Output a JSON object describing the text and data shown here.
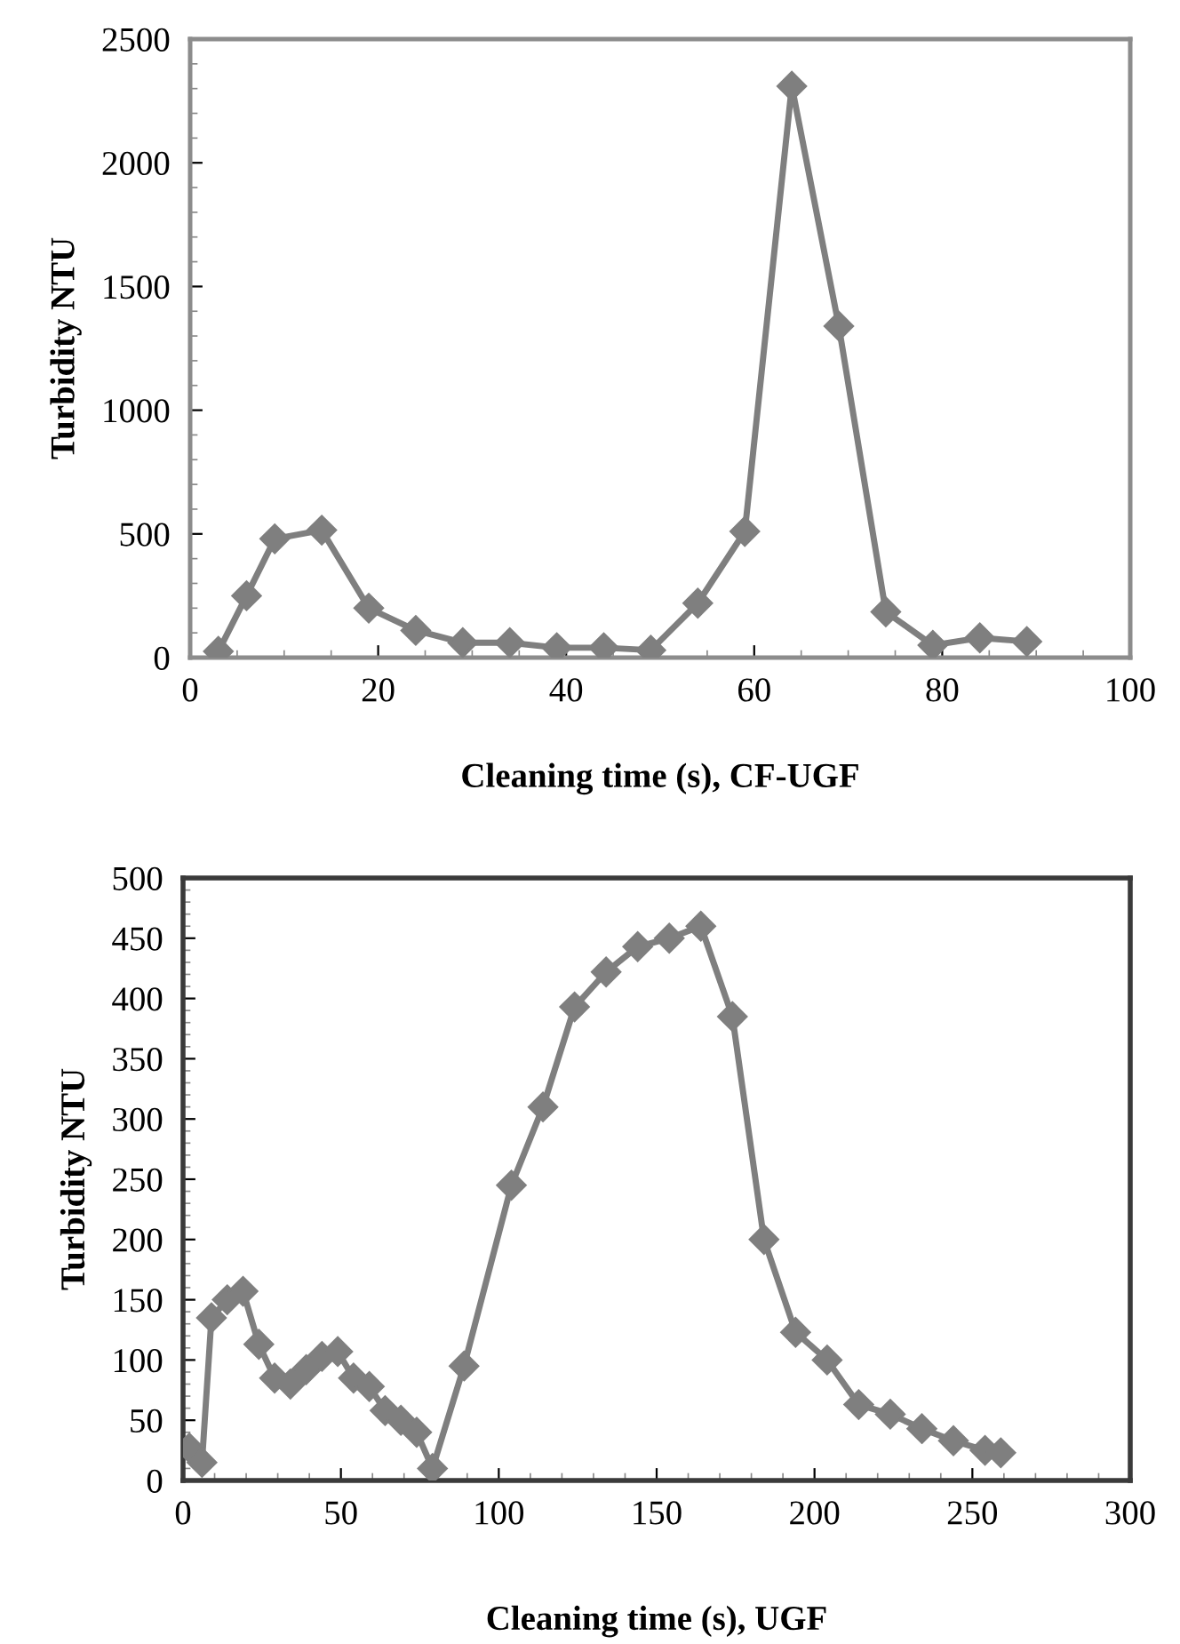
{
  "chart_data": [
    {
      "type": "line",
      "xlabel": "Cleaning time (s), CF-UGF",
      "ylabel": "Turbidity NTU",
      "marker": "diamond",
      "line_style": "solid",
      "grid": false,
      "series": [
        {
          "color": "#7f7f7f",
          "x": [
            3,
            6,
            9,
            14,
            19,
            24,
            29,
            34,
            39,
            44,
            49,
            54,
            59,
            64,
            69,
            74,
            79,
            84,
            89
          ],
          "values": [
            25,
            250,
            480,
            515,
            200,
            110,
            60,
            60,
            40,
            40,
            30,
            220,
            510,
            2310,
            1340,
            185,
            50,
            80,
            65
          ]
        }
      ],
      "xlim": [
        0,
        100
      ],
      "xticks": [
        0,
        20,
        40,
        60,
        80,
        100
      ],
      "ylim": [
        0,
        2500
      ],
      "yticks": [
        0,
        500,
        1000,
        1500,
        2000,
        2500
      ]
    },
    {
      "type": "line",
      "xlabel": "Cleaning time (s), UGF",
      "ylabel": "Turbidity NTU",
      "marker": "diamond",
      "line_style": "solid",
      "grid": false,
      "series": [
        {
          "color": "#7f7f7f",
          "x": [
            2,
            6,
            9,
            14,
            19,
            24,
            29,
            34,
            39,
            44,
            49,
            54,
            59,
            64,
            69,
            74,
            79,
            89,
            104,
            114,
            124,
            134,
            144,
            154,
            164,
            174,
            184,
            194,
            204,
            214,
            224,
            234,
            244,
            254,
            259
          ],
          "values": [
            27,
            15,
            135,
            150,
            157,
            113,
            85,
            80,
            92,
            103,
            107,
            85,
            78,
            58,
            50,
            40,
            10,
            95,
            245,
            310,
            393,
            422,
            443,
            450,
            460,
            385,
            200,
            123,
            100,
            63,
            55,
            43,
            33,
            25,
            23
          ]
        }
      ],
      "xlim": [
        0,
        300
      ],
      "xticks": [
        0,
        50,
        100,
        150,
        200,
        250,
        300
      ],
      "ylim": [
        0,
        500
      ],
      "yticks": [
        0,
        50,
        100,
        150,
        200,
        250,
        300,
        350,
        400,
        450,
        500
      ]
    }
  ]
}
